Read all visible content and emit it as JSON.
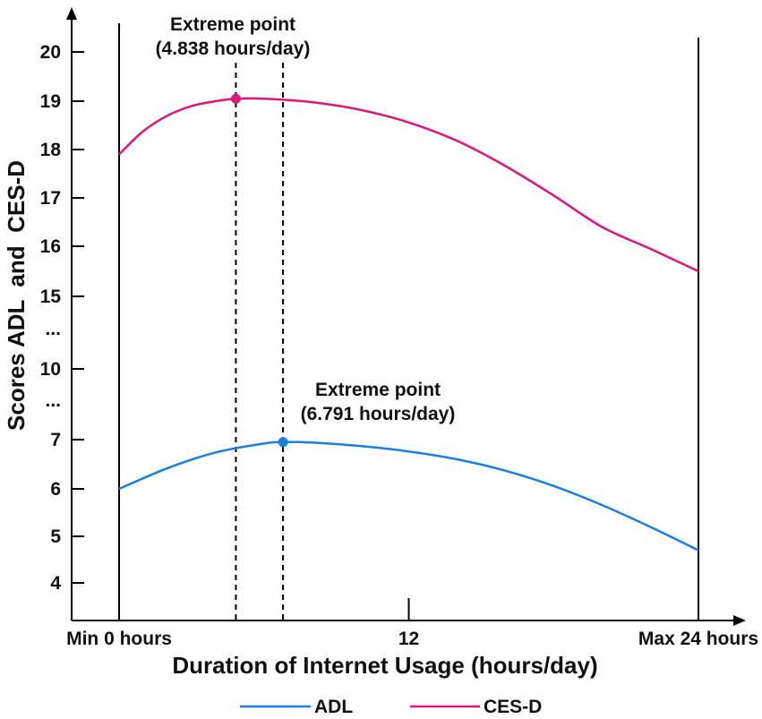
{
  "chart_data": {
    "type": "line",
    "title": "",
    "xlabel": "Duration of Internet Usage (hours/day)",
    "ylabel": "Scores ADL  and  CES-D",
    "xlim": [
      0,
      24
    ],
    "x_ticks": [
      {
        "value": 0,
        "label": "Min 0 hours"
      },
      {
        "value": 12,
        "label": "12"
      },
      {
        "value": 24,
        "label": "Max 24 hours"
      }
    ],
    "y_ticks": [
      {
        "value": 4,
        "label": "4"
      },
      {
        "value": 5,
        "label": "5"
      },
      {
        "value": 6,
        "label": "6"
      },
      {
        "value": 7,
        "label": "7"
      },
      {
        "value": 8.5,
        "label": "..."
      },
      {
        "value": 10,
        "label": "10"
      },
      {
        "value": 12.5,
        "label": "..."
      },
      {
        "value": 15,
        "label": "15"
      },
      {
        "value": 16,
        "label": "16"
      },
      {
        "value": 17,
        "label": "17"
      },
      {
        "value": 18,
        "label": "18"
      },
      {
        "value": 19,
        "label": "19"
      },
      {
        "value": 20,
        "label": "20"
      }
    ],
    "y_axis_break": true,
    "legend_position": "bottom-center",
    "grid": false,
    "series": [
      {
        "name": "ADL",
        "color": "#1a7fe0",
        "x": [
          0,
          2,
          4,
          6,
          6.791,
          8,
          10,
          12,
          14,
          16,
          18,
          20,
          22,
          24
        ],
        "values": [
          6.0,
          6.42,
          6.74,
          6.92,
          6.95,
          6.94,
          6.87,
          6.76,
          6.6,
          6.37,
          6.06,
          5.66,
          5.2,
          4.7
        ],
        "extreme_point": {
          "x": 6.791,
          "y": 6.95,
          "label_line1": "Extreme point",
          "label_line2": "(6.791 hours/day)"
        }
      },
      {
        "name": "CES-D",
        "color": "#e0157a",
        "x": [
          0,
          1,
          2,
          3,
          4,
          4.838,
          6,
          8,
          10,
          12,
          14,
          16,
          18,
          20,
          22,
          24
        ],
        "values": [
          17.9,
          18.38,
          18.7,
          18.9,
          19.0,
          19.05,
          19.05,
          18.98,
          18.82,
          18.56,
          18.18,
          17.66,
          17.05,
          16.4,
          15.95,
          15.5
        ],
        "extreme_point": {
          "x": 4.838,
          "y": 19.05,
          "label_line1": "Extreme point",
          "label_line2": "(4.838 hours/day)"
        }
      }
    ]
  }
}
